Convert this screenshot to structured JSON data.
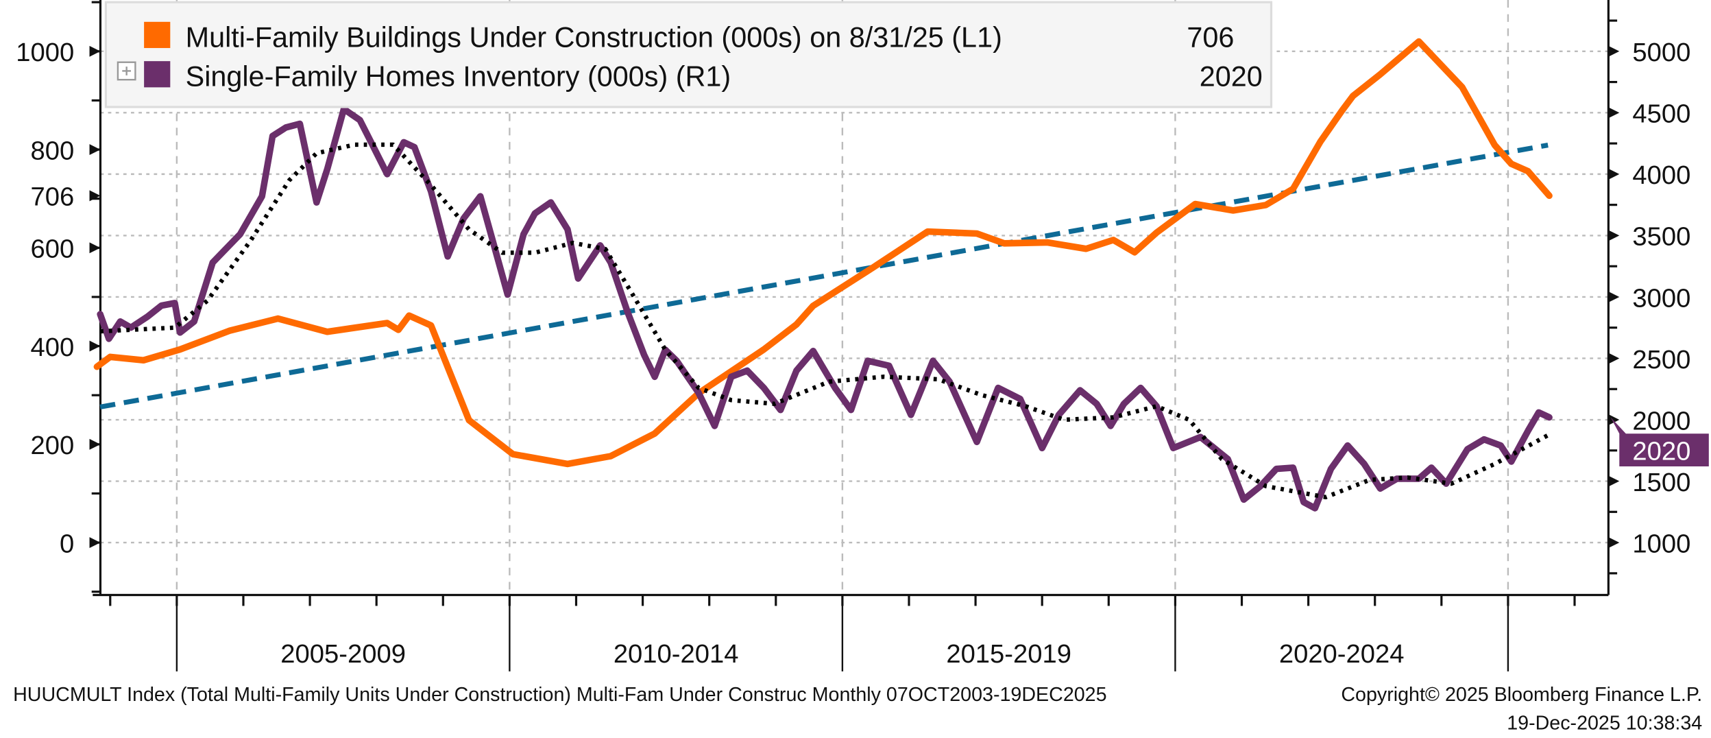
{
  "chart_data": {
    "type": "line",
    "legend_position": "top-left",
    "grid": true,
    "x_axis": {
      "type": "date",
      "range": [
        2003.77,
        2025.97
      ],
      "tick_labels": [
        "2005-2009",
        "2010-2014",
        "2015-2019",
        "2020-2024"
      ],
      "group_boundaries": [
        2005,
        2010,
        2015,
        2020,
        2025
      ]
    },
    "left_axis": {
      "range": [
        -100,
        1100
      ],
      "tick_labels": [
        "1000",
        "800",
        "600",
        "400",
        "200",
        "0"
      ],
      "ticks": [
        1000,
        800,
        600,
        400,
        200,
        0
      ],
      "last_value_label": "706",
      "last_value": 706
    },
    "right_axis": {
      "range": [
        750,
        5450
      ],
      "tick_labels": [
        "5000",
        "4500",
        "4000",
        "3500",
        "3000",
        "2500",
        "2000",
        "1500",
        "1000"
      ],
      "ticks": [
        5000,
        4500,
        4000,
        3500,
        3000,
        2500,
        2000,
        1500,
        1000
      ],
      "last_value_label": "2020",
      "last_value": 2020
    },
    "series": [
      {
        "name": "Multi-Family Buildings Under Construction (000s) on 8/31/25 (L1)",
        "last_value_label": "706",
        "axis": "left",
        "color": "#ff6a00",
        "x": [
          2003.8,
          2004.0,
          2004.5,
          2005.05,
          2005.79,
          2006.52,
          2007.26,
          2008.16,
          2008.33,
          2008.49,
          2008.82,
          2009.39,
          2010.05,
          2010.87,
          2011.52,
          2012.18,
          2012.84,
          2013.82,
          2014.31,
          2014.56,
          2015.46,
          2016.28,
          2017.02,
          2017.43,
          2018.08,
          2018.66,
          2019.07,
          2019.39,
          2019.72,
          2020.3,
          2020.87,
          2021.36,
          2021.77,
          2022.18,
          2022.51,
          2022.67,
          2023.08,
          2023.66,
          2024.31,
          2024.8,
          2025.05,
          2025.3,
          2025.62
        ],
        "y": [
          358,
          378,
          371,
          393,
          431,
          456,
          429,
          447,
          433,
          462,
          442,
          249,
          180,
          160,
          176,
          222,
          304,
          393,
          444,
          482,
          560,
          633,
          629,
          609,
          611,
          598,
          616,
          591,
          631,
          689,
          676,
          687,
          720,
          816,
          880,
          909,
          953,
          1020,
          927,
          809,
          771,
          756,
          706
        ]
      },
      {
        "name": "Single-Family Homes Inventory (000s) (R1)",
        "last_value_label": "2020",
        "axis": "right",
        "color": "#6b2f6b",
        "x": [
          2003.85,
          2003.98,
          2004.15,
          2004.31,
          2004.56,
          2004.77,
          2004.97,
          2005.05,
          2005.26,
          2005.54,
          2005.7,
          2005.95,
          2006.28,
          2006.44,
          2006.64,
          2006.85,
          2007.1,
          2007.26,
          2007.51,
          2007.75,
          2007.92,
          2008.16,
          2008.41,
          2008.57,
          2008.82,
          2009.07,
          2009.31,
          2009.56,
          2009.72,
          2009.97,
          2010.21,
          2010.38,
          2010.62,
          2010.87,
          2011.03,
          2011.36,
          2011.52,
          2011.77,
          2012.02,
          2012.18,
          2012.34,
          2012.51,
          2012.84,
          2013.08,
          2013.33,
          2013.57,
          2013.82,
          2014.07,
          2014.31,
          2014.56,
          2014.89,
          2015.13,
          2015.38,
          2015.7,
          2016.03,
          2016.36,
          2016.61,
          2017.02,
          2017.34,
          2017.67,
          2018.0,
          2018.25,
          2018.57,
          2018.82,
          2019.03,
          2019.23,
          2019.48,
          2019.72,
          2019.97,
          2020.38,
          2020.79,
          2021.03,
          2021.28,
          2021.52,
          2021.77,
          2021.93,
          2022.1,
          2022.34,
          2022.59,
          2022.84,
          2023.08,
          2023.33,
          2023.66,
          2023.85,
          2024.07,
          2024.39,
          2024.64,
          2024.89,
          2025.05,
          2025.3,
          2025.46,
          2025.62
        ],
        "y": [
          2860,
          2660,
          2800,
          2750,
          2840,
          2930,
          2950,
          2710,
          2800,
          3280,
          3370,
          3510,
          3820,
          4310,
          4380,
          4410,
          3770,
          4040,
          4530,
          4440,
          4260,
          4000,
          4260,
          4220,
          3860,
          3330,
          3640,
          3820,
          3510,
          3020,
          3510,
          3680,
          3770,
          3550,
          3150,
          3420,
          3280,
          2880,
          2530,
          2350,
          2570,
          2480,
          2220,
          1950,
          2350,
          2400,
          2260,
          2080,
          2400,
          2560,
          2260,
          2080,
          2480,
          2440,
          2040,
          2480,
          2310,
          1820,
          2260,
          2170,
          1770,
          2040,
          2240,
          2130,
          1950,
          2130,
          2260,
          2110,
          1770,
          1860,
          1680,
          1350,
          1460,
          1600,
          1610,
          1330,
          1280,
          1600,
          1790,
          1640,
          1440,
          1520,
          1520,
          1610,
          1480,
          1760,
          1840,
          1790,
          1660,
          1910,
          2060,
          2020
        ]
      },
      {
        "axis": "right",
        "color": "#000000",
        "style": "dotted",
        "x": [
          2003.85,
          2004.97,
          2005.46,
          2006.11,
          2006.69,
          2007.1,
          2007.67,
          2008.25,
          2008.82,
          2009.39,
          2009.89,
          2010.38,
          2010.95,
          2011.44,
          2011.85,
          2012.34,
          2012.84,
          2013.33,
          2013.98,
          2014.8,
          2015.62,
          2016.44,
          2017.1,
          2017.75,
          2018.33,
          2019.07,
          2019.72,
          2020.21,
          2020.7,
          2021.36,
          2022.26,
          2022.92,
          2023.49,
          2024.15,
          2024.8,
          2025.62
        ],
        "y": [
          2720,
          2750,
          2970,
          3460,
          3950,
          4170,
          4240,
          4240,
          3910,
          3550,
          3360,
          3360,
          3440,
          3390,
          3020,
          2570,
          2260,
          2160,
          2130,
          2310,
          2350,
          2330,
          2200,
          2110,
          2000,
          2020,
          2110,
          2000,
          1680,
          1460,
          1370,
          1510,
          1530,
          1480,
          1640,
          1880
        ]
      },
      {
        "axis": "left",
        "color": "#0e6a96",
        "style": "dashed",
        "x": [
          2003.85,
          2025.6
        ],
        "y": [
          276,
          809
        ]
      }
    ]
  },
  "legend": {
    "items": [
      {
        "label": "Multi-Family Buildings Under Construction (000s) on 8/31/25 (L1)",
        "value": "706",
        "color": "#ff6a00"
      },
      {
        "label": "Single-Family Homes Inventory (000s) (R1)",
        "value": "2020",
        "color": "#6b2f6b"
      }
    ],
    "expand_icon": "plus-square-icon"
  },
  "footer": {
    "source": "HUUCMULT Index (Total Multi-Family Units Under Construction) Multi-Fam Under Construc Monthly 07OCT2003-19DEC2025",
    "copyright": "Copyright© 2025 Bloomberg Finance L.P.",
    "timestamp": "19-Dec-2025 10:38:34"
  }
}
